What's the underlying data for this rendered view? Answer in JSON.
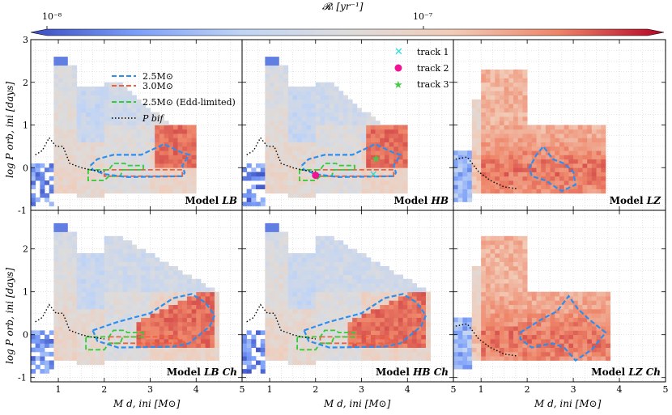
{
  "chart_data": {
    "type": "heatmap",
    "colorbar": {
      "label": "𝓡ᵢ [yr⁻¹]",
      "ticks": [
        {
          "value": 1e-08,
          "label": "10⁻⁸"
        },
        {
          "value": 1e-07,
          "label": "10⁻⁷"
        }
      ],
      "cmap_stops": [
        "#3a4cc0",
        "#7b9ff9",
        "#c0d4f5",
        "#dddcdc",
        "#f2cbb7",
        "#ee8468",
        "#b40426"
      ]
    },
    "xlabel": "M d, ini [M⊙]",
    "ylabel": "log P orb, ini [days]",
    "xlim": [
      0.4,
      5.0
    ],
    "ylim": [
      -1,
      3
    ],
    "xticks": [
      1,
      2,
      3,
      4,
      5
    ],
    "yticks": [
      -1,
      0,
      1,
      2,
      3
    ],
    "legend": {
      "location": "top-left of panel 1",
      "entries": [
        {
          "label": "2.5M⊙",
          "color": "#2a8ff0",
          "style": "dashed"
        },
        {
          "label": "3.0M⊙",
          "color": "#f0603c",
          "style": "dashed"
        },
        {
          "label": "2.5M⊙ (Edd-limited)",
          "color": "#33cc33",
          "style": "dashed"
        },
        {
          "label": "P bif",
          "color": "#000000",
          "style": "dotted"
        }
      ]
    },
    "tracks": [
      {
        "label": "track 1",
        "marker": "x",
        "color": "#22dddd",
        "x": 3.25,
        "y": -0.15
      },
      {
        "label": "track 2",
        "marker": "circle",
        "color": "#ee1493",
        "x": 2.0,
        "y": -0.18
      },
      {
        "label": "track 3",
        "marker": "star",
        "color": "#44cc44",
        "x": 3.3,
        "y": 0.22
      }
    ],
    "panels": [
      {
        "model": "LB",
        "title_main": "Model ",
        "title_italic": "LB",
        "type": "LB"
      },
      {
        "model": "HB",
        "title_main": "Model ",
        "title_italic": "HB",
        "type": "HB"
      },
      {
        "model": "LZ",
        "title_main": "Model ",
        "title_italic": "LZ",
        "type": "LZ"
      },
      {
        "model": "LBCh",
        "title_main": "Model ",
        "title_italic": "LB Ch",
        "type": "LBCh"
      },
      {
        "model": "HBCh",
        "title_main": "Model ",
        "title_italic": "HB Ch",
        "type": "HBCh"
      },
      {
        "model": "LZCh",
        "title_main": "Model ",
        "title_italic": "LZ Ch",
        "type": "LZCh"
      }
    ],
    "contours": {
      "LB": {
        "c25": [
          [
            1.7,
            0.05
          ],
          [
            1.85,
            0.2
          ],
          [
            2.2,
            0.3
          ],
          [
            2.8,
            0.3
          ],
          [
            3.3,
            0.55
          ],
          [
            3.7,
            0.35
          ],
          [
            3.85,
            0.3
          ],
          [
            3.7,
            0.05
          ],
          [
            3.75,
            -0.12
          ],
          [
            3.7,
            -0.2
          ],
          [
            2.5,
            -0.22
          ],
          [
            2.0,
            -0.15
          ],
          [
            1.75,
            -0.05
          ],
          [
            1.7,
            0.05
          ]
        ],
        "c30": [
          [
            2.0,
            -0.05
          ],
          [
            3.7,
            -0.05
          ],
          [
            3.7,
            -0.2
          ],
          [
            2.0,
            -0.2
          ],
          [
            2.0,
            -0.05
          ]
        ],
        "edd": [
          [
            1.65,
            -0.05
          ],
          [
            2.1,
            -0.05
          ],
          [
            2.2,
            0.1
          ],
          [
            2.45,
            0.1
          ],
          [
            2.5,
            0.05
          ],
          [
            2.85,
            0.05
          ],
          [
            2.85,
            -0.05
          ],
          [
            2.4,
            -0.05
          ],
          [
            2.35,
            -0.2
          ],
          [
            2.1,
            -0.2
          ],
          [
            2.0,
            -0.3
          ],
          [
            1.65,
            -0.3
          ],
          [
            1.65,
            -0.05
          ]
        ],
        "pbif": [
          [
            0.5,
            0.3
          ],
          [
            0.65,
            0.4
          ],
          [
            0.8,
            0.7
          ],
          [
            0.95,
            0.5
          ],
          [
            1.1,
            0.5
          ],
          [
            1.25,
            0.1
          ],
          [
            1.5,
            0.0
          ],
          [
            1.7,
            -0.05
          ],
          [
            2.0,
            -0.1
          ]
        ]
      },
      "HB": {
        "c25": [
          [
            1.7,
            0.05
          ],
          [
            1.85,
            0.2
          ],
          [
            2.2,
            0.3
          ],
          [
            2.8,
            0.3
          ],
          [
            3.3,
            0.55
          ],
          [
            3.7,
            0.35
          ],
          [
            3.85,
            0.3
          ],
          [
            3.7,
            0.05
          ],
          [
            3.75,
            -0.12
          ],
          [
            3.7,
            -0.2
          ],
          [
            2.5,
            -0.22
          ],
          [
            2.0,
            -0.15
          ],
          [
            1.75,
            -0.05
          ],
          [
            1.7,
            0.05
          ]
        ],
        "c30": [
          [
            2.0,
            -0.05
          ],
          [
            3.7,
            -0.05
          ],
          [
            3.7,
            -0.2
          ],
          [
            2.0,
            -0.2
          ],
          [
            2.0,
            -0.05
          ]
        ],
        "edd": [
          [
            1.65,
            -0.05
          ],
          [
            2.1,
            -0.05
          ],
          [
            2.2,
            0.1
          ],
          [
            2.45,
            0.1
          ],
          [
            2.5,
            0.05
          ],
          [
            2.85,
            0.05
          ],
          [
            2.85,
            -0.05
          ],
          [
            2.4,
            -0.05
          ],
          [
            2.35,
            -0.2
          ],
          [
            2.1,
            -0.2
          ],
          [
            2.0,
            -0.3
          ],
          [
            1.65,
            -0.3
          ],
          [
            1.65,
            -0.05
          ]
        ],
        "pbif": [
          [
            0.5,
            0.3
          ],
          [
            0.65,
            0.4
          ],
          [
            0.8,
            0.7
          ],
          [
            0.95,
            0.5
          ],
          [
            1.1,
            0.5
          ],
          [
            1.25,
            0.1
          ],
          [
            1.5,
            0.0
          ],
          [
            1.7,
            -0.05
          ],
          [
            2.0,
            -0.1
          ]
        ]
      },
      "LZ": {
        "c25": [
          [
            2.1,
            0.1
          ],
          [
            2.2,
            0.3
          ],
          [
            2.35,
            0.5
          ],
          [
            2.55,
            0.2
          ],
          [
            2.8,
            0.1
          ],
          [
            3.0,
            -0.1
          ],
          [
            3.05,
            -0.4
          ],
          [
            2.75,
            -0.55
          ],
          [
            2.4,
            -0.3
          ],
          [
            2.1,
            -0.2
          ],
          [
            2.05,
            0.0
          ],
          [
            2.1,
            0.1
          ]
        ],
        "c30": [],
        "edd": [],
        "pbif": [
          [
            0.45,
            0.2
          ],
          [
            0.7,
            0.25
          ],
          [
            0.95,
            -0.1
          ],
          [
            1.2,
            -0.3
          ],
          [
            1.5,
            -0.45
          ],
          [
            1.8,
            -0.5
          ]
        ]
      },
      "LBCh": {
        "c25": [
          [
            1.75,
            0.1
          ],
          [
            2.3,
            0.3
          ],
          [
            3.0,
            0.5
          ],
          [
            3.5,
            0.85
          ],
          [
            3.9,
            0.95
          ],
          [
            4.2,
            0.75
          ],
          [
            4.4,
            0.45
          ],
          [
            4.3,
            0.2
          ],
          [
            3.85,
            -0.2
          ],
          [
            3.5,
            -0.28
          ],
          [
            2.3,
            -0.3
          ],
          [
            1.85,
            -0.15
          ],
          [
            1.75,
            0.1
          ]
        ],
        "c30": [
          [
            2.1,
            -0.05
          ],
          [
            3.5,
            -0.05
          ],
          [
            3.8,
            -0.2
          ],
          [
            2.1,
            -0.2
          ],
          [
            2.1,
            -0.05
          ]
        ],
        "edd": [
          [
            1.6,
            -0.05
          ],
          [
            2.1,
            -0.05
          ],
          [
            2.2,
            0.1
          ],
          [
            2.45,
            0.1
          ],
          [
            2.5,
            0.05
          ],
          [
            2.85,
            0.05
          ],
          [
            2.85,
            -0.05
          ],
          [
            2.4,
            -0.05
          ],
          [
            2.35,
            -0.2
          ],
          [
            2.1,
            -0.2
          ],
          [
            2.0,
            -0.35
          ],
          [
            1.6,
            -0.35
          ],
          [
            1.6,
            -0.05
          ]
        ],
        "pbif": [
          [
            0.5,
            0.3
          ],
          [
            0.65,
            0.4
          ],
          [
            0.8,
            0.7
          ],
          [
            0.95,
            0.5
          ],
          [
            1.1,
            0.5
          ],
          [
            1.25,
            0.1
          ],
          [
            1.5,
            0.0
          ],
          [
            1.7,
            -0.05
          ],
          [
            2.0,
            -0.1
          ]
        ]
      },
      "HBCh": {
        "c25": [
          [
            1.75,
            0.1
          ],
          [
            2.3,
            0.3
          ],
          [
            3.0,
            0.5
          ],
          [
            3.5,
            0.85
          ],
          [
            3.9,
            0.95
          ],
          [
            4.2,
            0.75
          ],
          [
            4.4,
            0.45
          ],
          [
            4.3,
            0.2
          ],
          [
            3.85,
            -0.2
          ],
          [
            3.5,
            -0.28
          ],
          [
            2.3,
            -0.3
          ],
          [
            1.85,
            -0.15
          ],
          [
            1.75,
            0.1
          ]
        ],
        "c30": [
          [
            2.1,
            -0.05
          ],
          [
            3.5,
            -0.05
          ],
          [
            3.8,
            -0.2
          ],
          [
            2.1,
            -0.2
          ],
          [
            2.1,
            -0.05
          ]
        ],
        "edd": [
          [
            1.6,
            -0.05
          ],
          [
            2.1,
            -0.05
          ],
          [
            2.2,
            0.1
          ],
          [
            2.45,
            0.1
          ],
          [
            2.5,
            0.05
          ],
          [
            2.85,
            0.05
          ],
          [
            2.85,
            -0.05
          ],
          [
            2.4,
            -0.05
          ],
          [
            2.35,
            -0.2
          ],
          [
            2.1,
            -0.2
          ],
          [
            2.0,
            -0.35
          ],
          [
            1.6,
            -0.35
          ],
          [
            1.6,
            -0.05
          ]
        ],
        "pbif": [
          [
            0.5,
            0.3
          ],
          [
            0.65,
            0.4
          ],
          [
            0.8,
            0.7
          ],
          [
            0.95,
            0.5
          ],
          [
            1.1,
            0.5
          ],
          [
            1.25,
            0.1
          ],
          [
            1.5,
            0.0
          ],
          [
            1.7,
            -0.05
          ],
          [
            2.0,
            -0.1
          ]
        ]
      },
      "LZCh": {
        "c25": [
          [
            1.85,
            0.05
          ],
          [
            2.3,
            0.35
          ],
          [
            2.65,
            0.55
          ],
          [
            2.9,
            0.9
          ],
          [
            3.1,
            0.6
          ],
          [
            3.35,
            0.35
          ],
          [
            3.7,
            0.05
          ],
          [
            3.4,
            -0.35
          ],
          [
            3.05,
            -0.6
          ],
          [
            2.8,
            -0.3
          ],
          [
            2.55,
            -0.2
          ],
          [
            2.1,
            -0.3
          ],
          [
            1.85,
            -0.1
          ],
          [
            1.85,
            0.05
          ]
        ],
        "c30": [],
        "edd": [],
        "pbif": [
          [
            0.45,
            0.2
          ],
          [
            0.7,
            0.25
          ],
          [
            0.95,
            -0.1
          ],
          [
            1.2,
            -0.3
          ],
          [
            1.5,
            -0.45
          ],
          [
            1.8,
            -0.5
          ]
        ]
      }
    }
  }
}
